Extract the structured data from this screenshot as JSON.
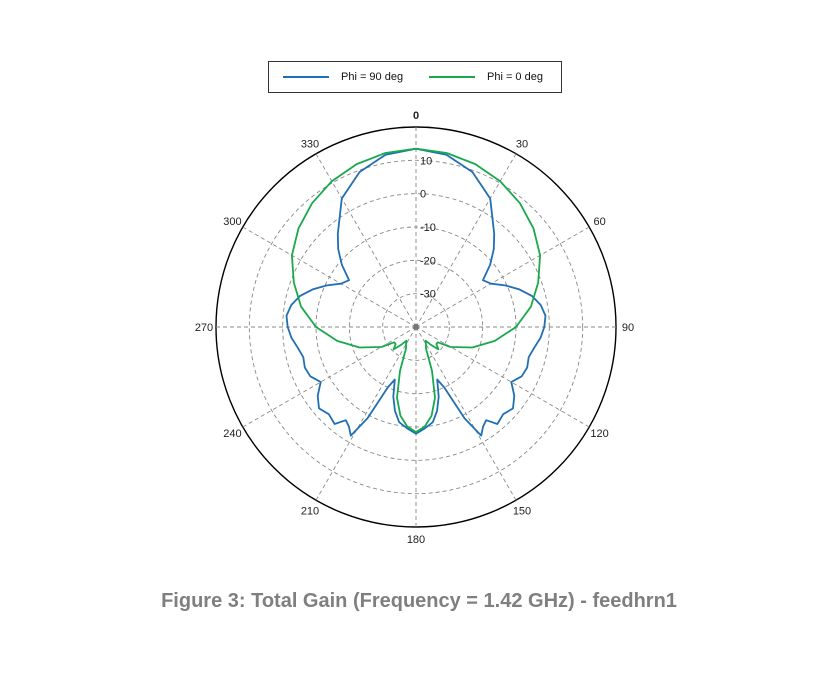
{
  "caption": "Figure 3: Total Gain (Frequency = 1.42 GHz) - feedhrn1",
  "legend": [
    {
      "label": "Phi = 90 deg",
      "color": "#1f6fb5"
    },
    {
      "label": "Phi = 0 deg",
      "color": "#1aa84d"
    }
  ],
  "chart_data": {
    "type": "polar-line",
    "angle_ticks": [
      "0",
      "30",
      "60",
      "90",
      "120",
      "150",
      "180",
      "210",
      "240",
      "270",
      "300",
      "330"
    ],
    "radial_ticks": [
      "10",
      "0",
      "-10",
      "-20",
      "-30"
    ],
    "radial_values": [
      10,
      0,
      -10,
      -20,
      -30
    ],
    "rlim": [
      -40,
      20
    ],
    "grid": true,
    "legend_position": "top",
    "series": [
      {
        "name": "Phi = 90 deg",
        "color": "#1f6fb5",
        "theta": [
          0,
          10,
          20,
          30,
          40,
          45,
          50,
          55,
          60,
          65,
          70,
          75,
          80,
          85,
          90,
          95,
          100,
          105,
          110,
          115,
          120,
          125,
          130,
          135,
          140,
          143,
          146,
          149,
          152,
          155,
          158,
          162,
          166,
          170,
          175,
          180,
          185,
          190,
          194,
          198,
          202,
          205,
          208,
          211,
          214,
          217,
          220,
          225,
          230,
          235,
          240,
          245,
          250,
          255,
          260,
          265,
          270,
          275,
          280,
          285,
          290,
          295,
          300,
          305,
          310,
          315,
          320,
          330,
          340,
          350,
          360
        ],
        "r": [
          13.5,
          12.5,
          9.5,
          4.5,
          -3.5,
          -7.0,
          -11.0,
          -15.5,
          -14.0,
          -10.5,
          -7.0,
          -4.0,
          -2.0,
          -1.0,
          -1.5,
          -2.5,
          -4.0,
          -5.0,
          -4.5,
          -5.0,
          -7.0,
          -4.0,
          -2.0,
          -3.0,
          -2.0,
          -5.0,
          -4.0,
          -2.0,
          -9.0,
          -20.0,
          -23.0,
          -18.0,
          -14.0,
          -11.0,
          -9.5,
          -8.0,
          -9.5,
          -11.0,
          -14.0,
          -18.0,
          -23.0,
          -20.0,
          -9.0,
          -2.0,
          -4.0,
          -5.0,
          -2.0,
          -3.0,
          -2.0,
          -4.0,
          -7.0,
          -5.0,
          -4.5,
          -5.0,
          -4.0,
          -2.5,
          -1.5,
          -1.0,
          -2.0,
          -4.0,
          -7.0,
          -10.5,
          -14.0,
          -15.5,
          -11.0,
          -7.0,
          -3.5,
          4.5,
          9.5,
          12.5,
          13.5
        ]
      },
      {
        "name": "Phi = 0 deg",
        "color": "#1aa84d",
        "theta": [
          0,
          10,
          20,
          30,
          40,
          50,
          60,
          70,
          80,
          90,
          100,
          110,
          120,
          125,
          130,
          135,
          140,
          145,
          150,
          155,
          160,
          165,
          170,
          175,
          180,
          185,
          190,
          195,
          200,
          205,
          210,
          215,
          220,
          225,
          230,
          235,
          240,
          250,
          260,
          270,
          280,
          290,
          300,
          310,
          320,
          330,
          340,
          350,
          360
        ],
        "r": [
          13.5,
          13.0,
          12.0,
          10.5,
          8.5,
          6.0,
          3.0,
          -1.0,
          -5.0,
          -10.0,
          -16.0,
          -22.0,
          -28.0,
          -32.0,
          -32.0,
          -30.5,
          -33.0,
          -35.0,
          -34.0,
          -33.0,
          -26.0,
          -18.0,
          -13.0,
          -10.0,
          -8.5,
          -10.0,
          -13.0,
          -18.0,
          -26.0,
          -33.0,
          -34.0,
          -35.0,
          -33.0,
          -30.5,
          -32.0,
          -32.0,
          -28.0,
          -22.0,
          -16.0,
          -10.0,
          -5.0,
          -1.0,
          3.0,
          6.0,
          8.5,
          10.5,
          12.0,
          13.0,
          13.5
        ]
      }
    ]
  }
}
